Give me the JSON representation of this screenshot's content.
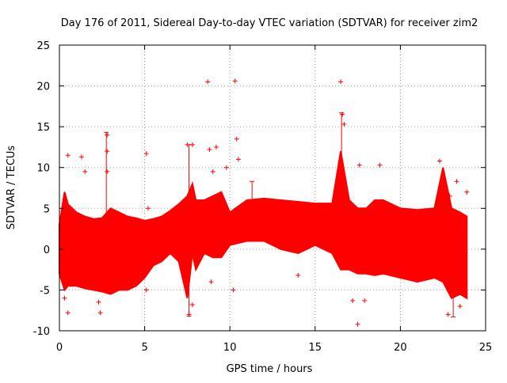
{
  "chart_data": {
    "type": "scatter",
    "title": "Day 176 of 2011, Sidereal Day-to-day VTEC variation (SDTVAR) for receiver zim2",
    "xlabel": "GPS time / hours",
    "ylabel": "SDTVAR / TECUs",
    "xlim": [
      0,
      25
    ],
    "ylim": [
      -10,
      25
    ],
    "xticks": [
      0,
      5,
      10,
      15,
      20,
      25
    ],
    "yticks": [
      -10,
      -5,
      0,
      5,
      10,
      15,
      20,
      25
    ],
    "grid": true,
    "marker": "+",
    "color": "#ff0000",
    "series": [
      {
        "name": "SDTVAR",
        "envelope": {
          "x": [
            0.0,
            0.3,
            0.5,
            1.0,
            1.5,
            2.0,
            2.5,
            3.0,
            3.5,
            4.0,
            4.5,
            5.0,
            5.5,
            6.0,
            6.5,
            7.0,
            7.5,
            7.8,
            8.0,
            8.5,
            9.0,
            9.5,
            10.0,
            11.0,
            12.0,
            13.0,
            14.0,
            15.0,
            16.0,
            16.5,
            17.0,
            17.5,
            18.0,
            18.5,
            19.0,
            20.0,
            21.0,
            22.0,
            22.5,
            23.0,
            23.5,
            23.9
          ],
          "upper": [
            3.0,
            7.0,
            5.5,
            4.5,
            4.0,
            3.7,
            3.8,
            5.0,
            4.5,
            4.0,
            3.8,
            3.5,
            3.7,
            4.0,
            4.7,
            5.5,
            6.5,
            8.0,
            6.0,
            6.0,
            6.5,
            7.0,
            4.5,
            6.0,
            6.2,
            6.0,
            5.8,
            5.6,
            5.6,
            12.0,
            6.0,
            5.0,
            5.0,
            6.0,
            6.0,
            5.0,
            4.8,
            5.0,
            10.0,
            5.0,
            4.5,
            4.0
          ],
          "lower": [
            -3.0,
            -5.0,
            -4.5,
            -4.5,
            -4.8,
            -5.0,
            -5.2,
            -5.5,
            -5.0,
            -5.0,
            -4.5,
            -3.5,
            -2.0,
            -1.5,
            -0.5,
            -1.5,
            -6.0,
            -0.5,
            -2.5,
            -0.5,
            -1.0,
            -1.0,
            0.5,
            1.0,
            1.0,
            0.0,
            -0.5,
            0.5,
            -0.5,
            -2.5,
            -2.5,
            -3.0,
            -3.0,
            -3.2,
            -3.0,
            -3.5,
            -4.0,
            -3.5,
            -4.0,
            -6.0,
            -5.5,
            -6.0
          ]
        },
        "outliers": [
          {
            "x": 0.5,
            "y": 11.5
          },
          {
            "x": 0.5,
            "y": -7.8
          },
          {
            "x": 0.3,
            "y": -6.0
          },
          {
            "x": 1.3,
            "y": 11.3
          },
          {
            "x": 1.5,
            "y": 9.5
          },
          {
            "x": 2.3,
            "y": -6.5
          },
          {
            "x": 2.4,
            "y": -7.8
          },
          {
            "x": 2.8,
            "y": 14.0
          },
          {
            "x": 2.8,
            "y": 12.0
          },
          {
            "x": 2.8,
            "y": 9.5
          },
          {
            "x": 5.1,
            "y": 11.7
          },
          {
            "x": 5.2,
            "y": 5.0
          },
          {
            "x": 5.1,
            "y": -5.0
          },
          {
            "x": 7.5,
            "y": 12.8
          },
          {
            "x": 7.6,
            "y": -8.0
          },
          {
            "x": 7.8,
            "y": 12.8
          },
          {
            "x": 7.8,
            "y": -6.8
          },
          {
            "x": 8.7,
            "y": 20.5
          },
          {
            "x": 8.8,
            "y": 12.2
          },
          {
            "x": 8.9,
            "y": -4.0
          },
          {
            "x": 9.0,
            "y": 9.5
          },
          {
            "x": 9.2,
            "y": 12.5
          },
          {
            "x": 9.8,
            "y": 10.0
          },
          {
            "x": 10.3,
            "y": 20.6
          },
          {
            "x": 10.4,
            "y": 13.5
          },
          {
            "x": 10.5,
            "y": 11.0
          },
          {
            "x": 10.2,
            "y": -5.0
          },
          {
            "x": 14.0,
            "y": -3.2
          },
          {
            "x": 16.5,
            "y": 20.5
          },
          {
            "x": 16.6,
            "y": 16.5
          },
          {
            "x": 16.7,
            "y": 15.3
          },
          {
            "x": 17.2,
            "y": -6.3
          },
          {
            "x": 17.5,
            "y": -9.2
          },
          {
            "x": 17.6,
            "y": 10.3
          },
          {
            "x": 17.9,
            "y": -6.3
          },
          {
            "x": 18.8,
            "y": 10.3
          },
          {
            "x": 22.3,
            "y": 10.8
          },
          {
            "x": 22.8,
            "y": -8.0
          },
          {
            "x": 22.9,
            "y": 6.5
          },
          {
            "x": 23.3,
            "y": 8.3
          },
          {
            "x": 23.5,
            "y": -7.0
          },
          {
            "x": 23.9,
            "y": 7.0
          }
        ],
        "error_bars": [
          {
            "x": 2.75,
            "low": 3.0,
            "high": 14.3
          },
          {
            "x": 7.6,
            "low": -8.2,
            "high": 12.8
          },
          {
            "x": 16.55,
            "low": 6.0,
            "high": 16.7
          },
          {
            "x": 11.3,
            "low": 5.0,
            "high": 8.3
          },
          {
            "x": 23.1,
            "low": -8.3,
            "high": 3.0
          }
        ]
      }
    ]
  }
}
